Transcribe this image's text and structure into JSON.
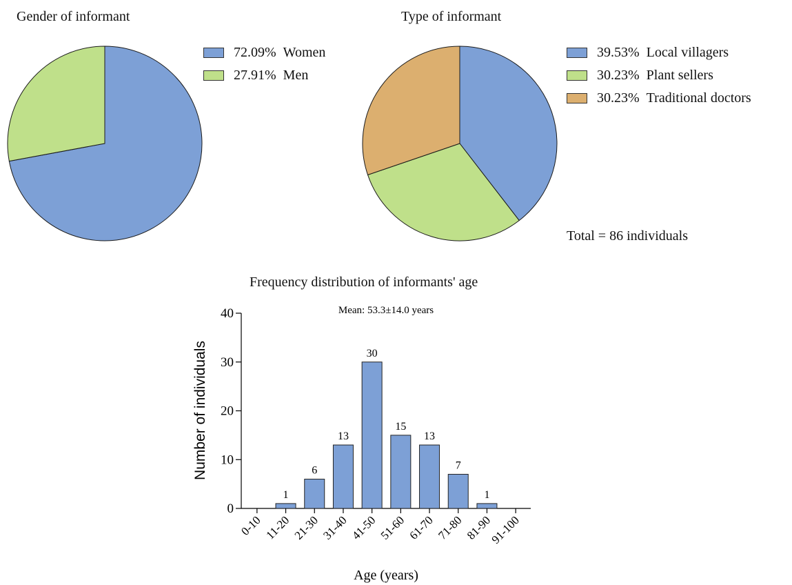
{
  "colors": {
    "blue": "#7da0d6",
    "green": "#bfe08a",
    "tan": "#dcaf6f"
  },
  "chart_data": [
    {
      "type": "pie",
      "title": "Gender of informant",
      "slices": [
        {
          "label": "Women",
          "value": 72.09,
          "pct_label": "72.09%",
          "color": "#7da0d6"
        },
        {
          "label": "Men",
          "value": 27.91,
          "pct_label": "27.91%",
          "color": "#bfe08a"
        }
      ],
      "legend_position": "right"
    },
    {
      "type": "pie",
      "title": "Type of informant",
      "slices": [
        {
          "label": "Local villagers",
          "value": 39.53,
          "pct_label": "39.53%",
          "color": "#7da0d6"
        },
        {
          "label": "Plant sellers",
          "value": 30.23,
          "pct_label": "30.23%",
          "color": "#bfe08a"
        },
        {
          "label": "Traditional doctors",
          "value": 30.23,
          "pct_label": "30.23%",
          "color": "#dcaf6f"
        }
      ],
      "legend_position": "right",
      "annotation": "Total = 86 individuals"
    },
    {
      "type": "bar",
      "title": "Frequency distribution of informants' age",
      "subtitle": "Mean: 53.3±14.0 years",
      "categories": [
        "0-10",
        "11-20",
        "21-30",
        "31-40",
        "41-50",
        "51-60",
        "61-70",
        "71-80",
        "81-90",
        "91-100"
      ],
      "values": [
        0,
        1,
        6,
        13,
        30,
        15,
        13,
        7,
        1,
        0
      ],
      "data_labels": [
        "",
        "1",
        "6",
        "13",
        "30",
        "15",
        "13",
        "7",
        "1",
        ""
      ],
      "xlabel": "Age (years)",
      "ylabel": "Number of individuals",
      "ylim": [
        0,
        40
      ],
      "yticks": [
        0,
        10,
        20,
        30,
        40
      ],
      "grid": false,
      "color": "#7da0d6"
    }
  ]
}
